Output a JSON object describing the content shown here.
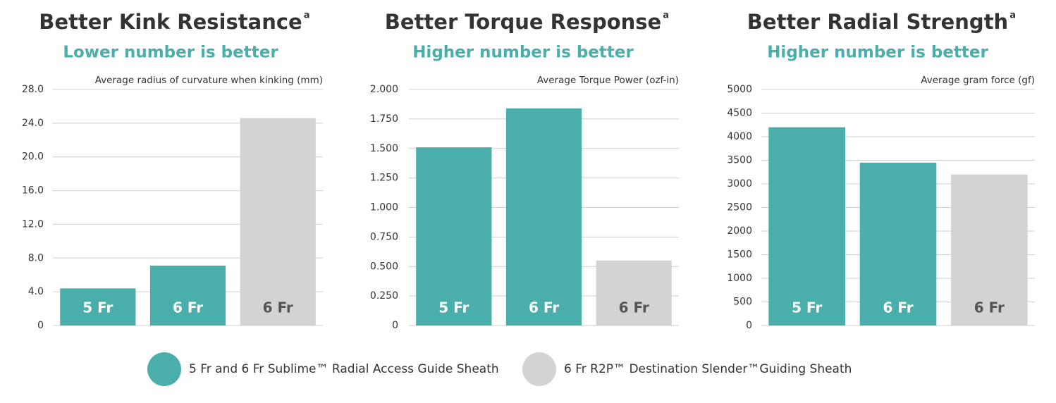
{
  "chart_data": [
    {
      "type": "bar",
      "title": "Better Kink Resistance",
      "title_note": "a",
      "subtitle": "Lower number is better",
      "ylabel": "Average radius of curvature when kinking (mm)",
      "categories": [
        "5 Fr",
        "6 Fr",
        "6 Fr"
      ],
      "values": [
        4.4,
        7.1,
        24.6
      ],
      "colors": [
        "#4aaeaa",
        "#4aaeaa",
        "#d3d3d5"
      ],
      "ylim": [
        0,
        28
      ],
      "yticks": [
        0,
        {
          "value": 4,
          "label": "4.0"
        },
        {
          "value": 8,
          "label": "8.0"
        },
        {
          "value": 12,
          "label": "12.0"
        },
        {
          "value": 16,
          "label": "16.0"
        },
        {
          "value": 20,
          "label": "20.0"
        },
        {
          "value": 24,
          "label": "24.0"
        },
        {
          "value": 28,
          "label": "28.0"
        }
      ],
      "grid": true
    },
    {
      "type": "bar",
      "title": "Better Torque Response",
      "title_note": "a",
      "subtitle": "Higher number is better",
      "ylabel": "Average Torque Power (ozf-in)",
      "categories": [
        "5 Fr",
        "6 Fr",
        "6 Fr"
      ],
      "values": [
        1.51,
        1.84,
        0.55
      ],
      "colors": [
        "#4aaeaa",
        "#4aaeaa",
        "#d3d3d5"
      ],
      "ylim": [
        0,
        2
      ],
      "yticks": [
        0,
        {
          "value": 0.25,
          "label": "0.250"
        },
        {
          "value": 0.5,
          "label": "0.500"
        },
        {
          "value": 0.75,
          "label": "0.750"
        },
        {
          "value": 1,
          "label": "1.000"
        },
        {
          "value": 1.25,
          "label": "1.250"
        },
        {
          "value": 1.5,
          "label": "1.500"
        },
        {
          "value": 1.75,
          "label": "1.750"
        },
        {
          "value": 2,
          "label": "2.000"
        }
      ],
      "grid": true
    },
    {
      "type": "bar",
      "title": "Better Radial Strength",
      "title_note": "a",
      "subtitle": "Higher number is better",
      "ylabel": "Average gram force (gf)",
      "categories": [
        "5 Fr",
        "6 Fr",
        "6 Fr"
      ],
      "values": [
        4200,
        3450,
        3200
      ],
      "colors": [
        "#4aaeaa",
        "#4aaeaa",
        "#d3d3d5"
      ],
      "ylim": [
        0,
        5000
      ],
      "yticks": [
        0,
        500,
        1000,
        1500,
        2000,
        2500,
        3000,
        3500,
        4000,
        4500,
        5000
      ],
      "grid": true
    }
  ],
  "legend": [
    {
      "name": "5 Fr and 6 Fr Sublime™ Radial Access Guide Sheath",
      "color": "#4aaeaa"
    },
    {
      "name": "6 Fr R2P™ Destination Slender™Guiding Sheath",
      "color": "#d3d3d5"
    }
  ]
}
